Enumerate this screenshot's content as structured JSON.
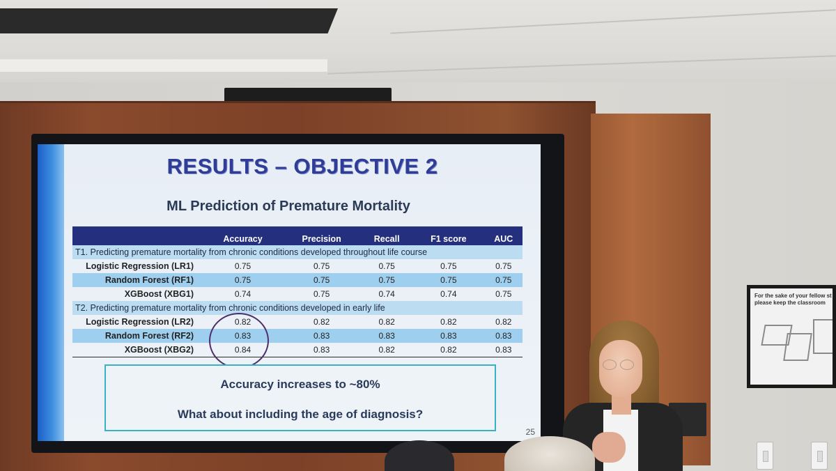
{
  "slide": {
    "title": "RESULTS – OBJECTIVE 2",
    "subtitle": "ML Prediction of Premature Mortality",
    "table": {
      "columns": [
        "",
        "Accuracy",
        "Precision",
        "Recall",
        "F1 score",
        "AUC"
      ],
      "sections": [
        {
          "heading": "T1. Predicting premature mortality from chronic conditions developed throughout life course",
          "rows": [
            {
              "model": "Logistic Regression (LR1)",
              "values": [
                "0.75",
                "0.75",
                "0.75",
                "0.75",
                "0.75"
              ]
            },
            {
              "model": "Random Forest (RF1)",
              "values": [
                "0.75",
                "0.75",
                "0.75",
                "0.75",
                "0.75"
              ]
            },
            {
              "model": "XGBoost (XBG1)",
              "values": [
                "0.74",
                "0.75",
                "0.74",
                "0.74",
                "0.75"
              ]
            }
          ]
        },
        {
          "heading": "T2. Predicting premature mortality from chronic conditions developed in early life",
          "rows": [
            {
              "model": "Logistic Regression (LR2)",
              "values": [
                "0.82",
                "0.82",
                "0.82",
                "0.82",
                "0.82"
              ]
            },
            {
              "model": "Random Forest (RF2)",
              "values": [
                "0.83",
                "0.83",
                "0.83",
                "0.83",
                "0.83"
              ]
            },
            {
              "model": "XGBoost (XBG2)",
              "values": [
                "0.84",
                "0.83",
                "0.82",
                "0.82",
                "0.83"
              ]
            }
          ]
        }
      ]
    },
    "takeaway": {
      "line1": "Accuracy increases to ~80%",
      "line2": "What about including the age of diagnosis?"
    },
    "slide_number": "25"
  },
  "poster": {
    "line1": "For the sake of your fellow st",
    "line2": "please keep the classroom"
  },
  "colors": {
    "slide_title": "#2f3d96",
    "table_header": "#24307e",
    "section_row": "#bcdcf2",
    "alt_row": "#9fcfee",
    "takeaway_border": "#3ab0c2"
  }
}
